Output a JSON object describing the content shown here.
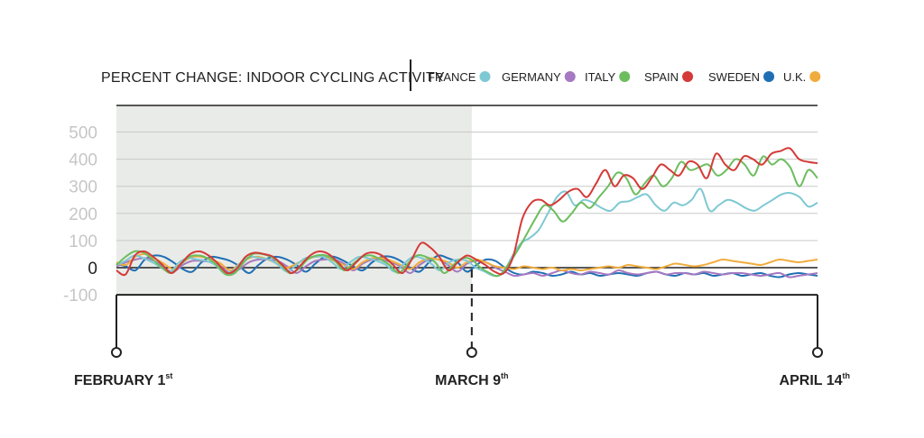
{
  "chart_data": {
    "type": "line",
    "title": "PERCENT CHANGE: INDOOR CYCLING ACTIVITY",
    "y_ticks": [
      500,
      400,
      300,
      200,
      100,
      0,
      -100
    ],
    "ylim": [
      -100,
      600
    ],
    "grid": true,
    "legend_position": "top-right",
    "x_labels": [
      {
        "main": "FEBRUARY 1",
        "sup": "st",
        "day": 0
      },
      {
        "main": "MARCH 9",
        "sup": "th",
        "day": 37
      },
      {
        "main": "APRIL 14",
        "sup": "th",
        "day": 73
      }
    ],
    "shaded_region_days": [
      0,
      37
    ],
    "series": [
      {
        "name": "FRANCE",
        "color": "#7ec8d3",
        "values": [
          10,
          25,
          45,
          35,
          20,
          0,
          -15,
          20,
          35,
          30,
          25,
          10,
          -20,
          -10,
          25,
          40,
          35,
          30,
          10,
          -15,
          10,
          35,
          40,
          40,
          20,
          -5,
          20,
          40,
          35,
          25,
          10,
          -15,
          15,
          40,
          35,
          15,
          -10,
          20,
          30,
          25,
          0,
          -15,
          -30,
          -20,
          40,
          90,
          110,
          140,
          200,
          260,
          280,
          230,
          250,
          240,
          220,
          210,
          240,
          245,
          260,
          270,
          230,
          210,
          240,
          230,
          250,
          290,
          210,
          230,
          250,
          240,
          220,
          210,
          230,
          250,
          270,
          275,
          260,
          225,
          240
        ]
      },
      {
        "name": "GERMANY",
        "color": "#a678c1",
        "values": [
          5,
          20,
          30,
          35,
          25,
          0,
          -15,
          10,
          25,
          25,
          20,
          5,
          -20,
          -5,
          20,
          30,
          30,
          25,
          5,
          -20,
          5,
          25,
          30,
          30,
          15,
          -10,
          15,
          30,
          30,
          20,
          5,
          -20,
          10,
          30,
          30,
          10,
          -15,
          15,
          25,
          20,
          0,
          -15,
          -30,
          -25,
          -20,
          -30,
          -20,
          -10,
          -20,
          -25,
          -15,
          -20,
          -25,
          -10,
          -20,
          -25,
          -20,
          -15,
          -25,
          -20,
          -20,
          -25,
          -15,
          -20,
          -25,
          -20,
          -20,
          -25,
          -30,
          -25,
          -20,
          -35,
          -30,
          -25,
          -20
        ]
      },
      {
        "name": "ITALY",
        "color": "#6cbd5e",
        "values": [
          10,
          40,
          60,
          55,
          30,
          0,
          -20,
          10,
          40,
          45,
          35,
          10,
          -25,
          -20,
          20,
          50,
          50,
          40,
          15,
          -20,
          -5,
          30,
          45,
          45,
          25,
          -10,
          15,
          40,
          45,
          30,
          10,
          -20,
          15,
          45,
          40,
          20,
          -20,
          10,
          35,
          30,
          0,
          -20,
          -30,
          10,
          60,
          120,
          180,
          230,
          210,
          170,
          200,
          240,
          220,
          260,
          300,
          350,
          330,
          270,
          310,
          340,
          300,
          330,
          390,
          360,
          370,
          380,
          340,
          360,
          400,
          380,
          340,
          410,
          380,
          400,
          370,
          300,
          360,
          330
        ]
      },
      {
        "name": "SPAIN",
        "color": "#d43a37",
        "values": [
          -10,
          -25,
          45,
          60,
          40,
          10,
          -20,
          15,
          50,
          60,
          45,
          15,
          -20,
          -5,
          40,
          55,
          50,
          40,
          10,
          -20,
          10,
          45,
          60,
          50,
          20,
          -10,
          20,
          50,
          55,
          40,
          10,
          -20,
          30,
          90,
          75,
          40,
          -10,
          20,
          45,
          30,
          10,
          -15,
          -20,
          40,
          180,
          240,
          250,
          230,
          250,
          280,
          290,
          260,
          310,
          360,
          300,
          340,
          330,
          290,
          330,
          380,
          360,
          340,
          390,
          380,
          330,
          420,
          380,
          360,
          410,
          400,
          380,
          420,
          430,
          440,
          400,
          390,
          385
        ]
      },
      {
        "name": "SWEDEN",
        "color": "#1f6fb4",
        "values": [
          15,
          5,
          -10,
          30,
          45,
          40,
          20,
          -5,
          -15,
          20,
          40,
          35,
          25,
          5,
          -20,
          10,
          35,
          40,
          30,
          10,
          -15,
          15,
          40,
          40,
          25,
          5,
          -10,
          20,
          40,
          40,
          25,
          0,
          -15,
          20,
          45,
          35,
          20,
          -15,
          10,
          30,
          25,
          0,
          -20,
          -25,
          -15,
          -20,
          -30,
          -25,
          -15,
          -25,
          -20,
          -30,
          -25,
          -20,
          -25,
          -30,
          -20,
          -15,
          -25,
          -30,
          -20,
          -25,
          -20,
          -30,
          -25,
          -20,
          -30,
          -25,
          -20,
          -30,
          -35,
          -25,
          -20,
          -25,
          -30
        ]
      },
      {
        "name": "U.K.",
        "color": "#f0ac3c",
        "values": [
          20,
          10,
          40,
          50,
          35,
          15,
          -5,
          20,
          40,
          40,
          30,
          15,
          -10,
          15,
          35,
          40,
          30,
          15,
          0,
          15,
          30,
          40,
          40,
          25,
          10,
          -5,
          20,
          35,
          35,
          25,
          10,
          -5,
          20,
          35,
          30,
          20,
          0,
          20,
          30,
          20,
          5,
          0,
          -5,
          5,
          0,
          -5,
          0,
          -10,
          -5,
          -10,
          -5,
          0,
          5,
          0,
          10,
          5,
          0,
          -5,
          5,
          15,
          10,
          5,
          10,
          20,
          30,
          25,
          20,
          15,
          10,
          20,
          30,
          25,
          20,
          25,
          30
        ]
      }
    ]
  }
}
